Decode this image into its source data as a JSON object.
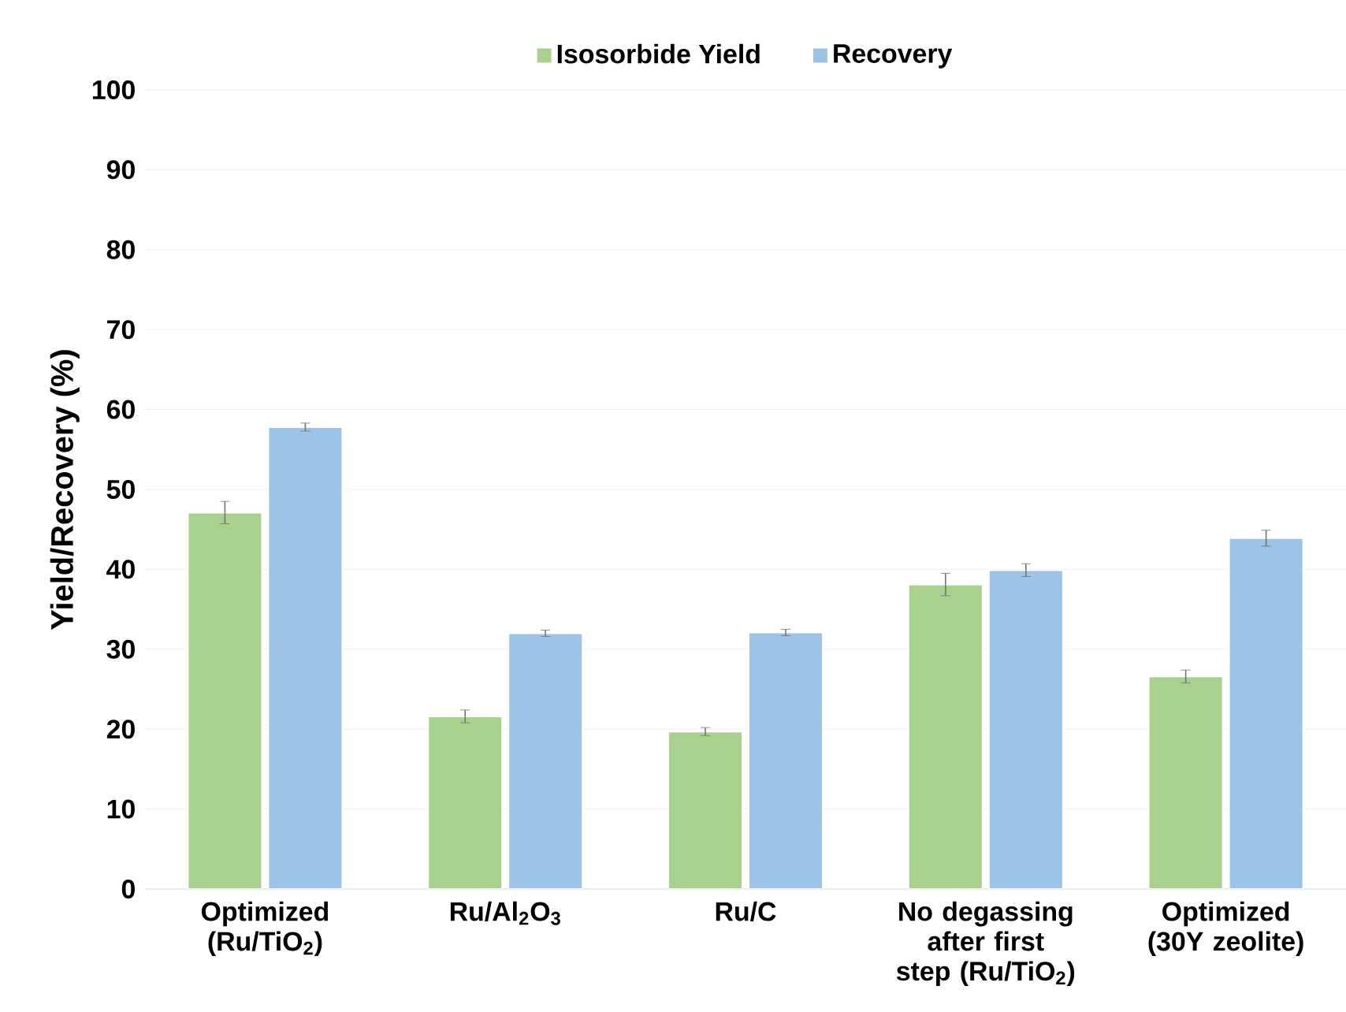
{
  "chart_data": {
    "type": "bar",
    "ylabel": "Yield/Recovery (%)",
    "categories": [
      "Optimized (Ru/TiO$_{2}$)",
      "Ru/Al$_{2}$O$_{3}$",
      "Ru/C",
      "No degassing after first step (Ru/TiO$_{2}$)",
      "Optimized (30Y zeolite)"
    ],
    "series": [
      {
        "name": "Isosorbide Yield",
        "color": "#a9d18e",
        "values": [
          47.1,
          21.6,
          19.7,
          38.1,
          26.6
        ],
        "errors": [
          1.4,
          0.8,
          0.5,
          1.4,
          0.8
        ]
      },
      {
        "name": "Recovery",
        "color": "#9dc3e6",
        "values": [
          57.8,
          32.0,
          32.1,
          39.9,
          43.9
        ],
        "errors": [
          0.5,
          0.4,
          0.4,
          0.8,
          1.0
        ]
      }
    ],
    "ylim": [
      0,
      100
    ],
    "yticks": [
      0,
      10,
      20,
      30,
      40,
      50,
      60,
      70,
      80,
      90,
      100
    ],
    "grid": "y",
    "legend": "top"
  }
}
